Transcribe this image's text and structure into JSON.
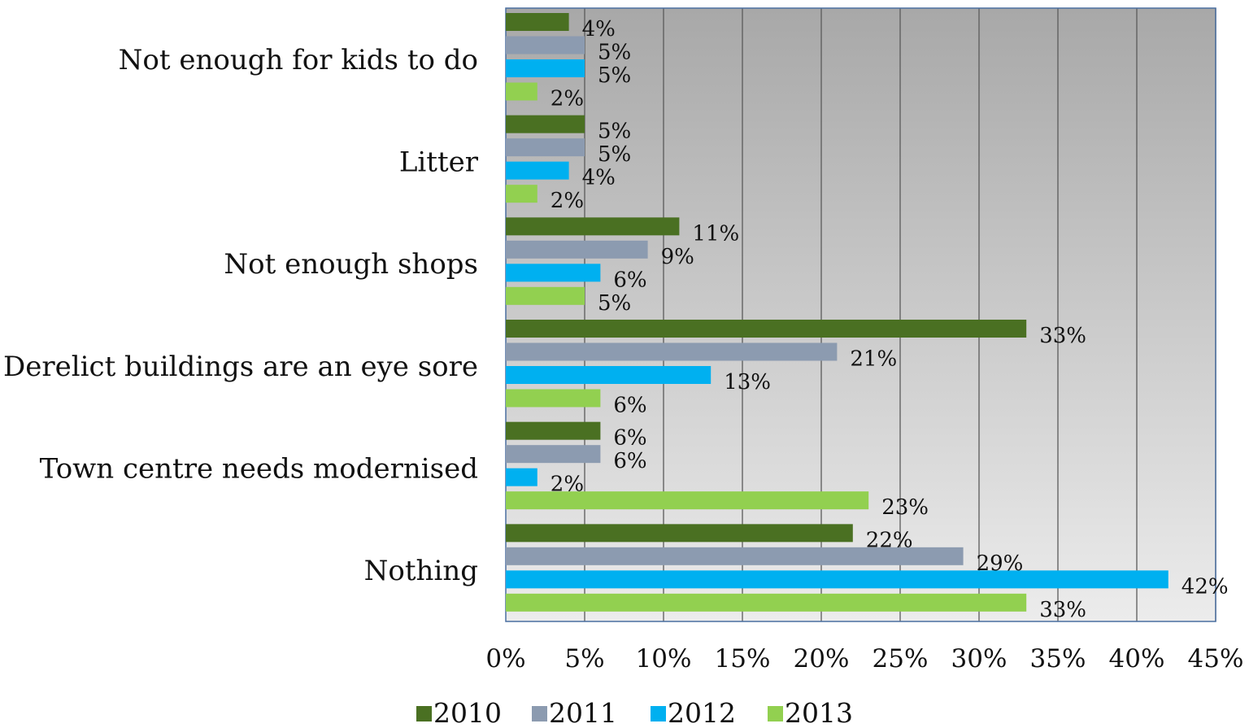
{
  "chart_data": {
    "type": "bar",
    "orientation": "horizontal",
    "categories": [
      "Not enough for kids to do",
      "Litter",
      "Not enough shops",
      "Derelict buildings are an eye sore",
      "Town centre needs modernised",
      "Nothing"
    ],
    "series": [
      {
        "name": "2010",
        "color": "#4a7022",
        "values": [
          4,
          5,
          11,
          33,
          6,
          22
        ],
        "labels": [
          "4%",
          "5%",
          "11%",
          "33%",
          "6%",
          "22%"
        ]
      },
      {
        "name": "2011",
        "color": "#8c9bb0",
        "values": [
          5,
          5,
          9,
          21,
          6,
          29
        ],
        "labels": [
          "5%",
          "5%",
          "9%",
          "21%",
          "6%",
          "29%"
        ]
      },
      {
        "name": "2012",
        "color": "#00b0f0",
        "values": [
          5,
          4,
          6,
          13,
          2,
          42
        ],
        "labels": [
          "5%",
          "4%",
          "6%",
          "13%",
          "2%",
          "42%"
        ]
      },
      {
        "name": "2013",
        "color": "#92d050",
        "values": [
          2,
          2,
          5,
          6,
          23,
          33
        ],
        "labels": [
          "2%",
          "2%",
          "5%",
          "6%",
          "23%",
          "33%"
        ]
      }
    ],
    "xlim": [
      0,
      45
    ],
    "xticks": [
      0,
      5,
      10,
      15,
      20,
      25,
      30,
      35,
      40,
      45
    ],
    "xtick_labels": [
      "0%",
      "5%",
      "10%",
      "15%",
      "20%",
      "25%",
      "30%",
      "35%",
      "40%",
      "45%"
    ],
    "title": "",
    "xlabel": "",
    "ylabel": "",
    "grid": "vertical",
    "legend": "bottom",
    "plot_background": "gradient gray",
    "axis_color": "#4a6fa0"
  }
}
